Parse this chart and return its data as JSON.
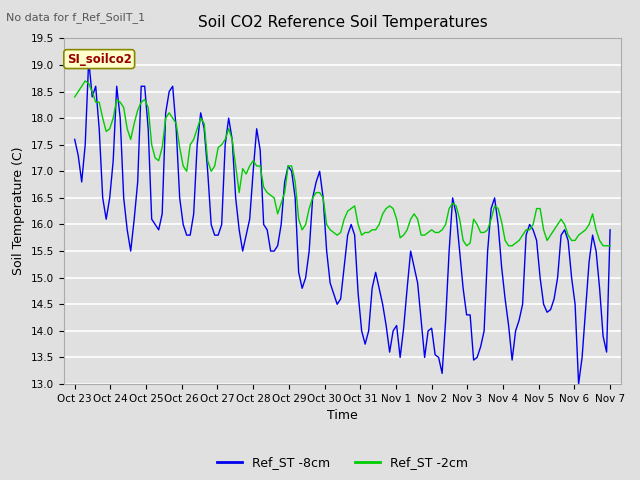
{
  "title": "Soil CO2 Reference Soil Temperatures",
  "top_left_text": "No data for f_Ref_SoilT_1",
  "annotation_text": "SI_soilco2",
  "xlabel": "Time",
  "ylabel": "Soil Temperature (C)",
  "ylim": [
    13.0,
    19.5
  ],
  "yticks": [
    13.0,
    13.5,
    14.0,
    14.5,
    15.0,
    15.5,
    16.0,
    16.5,
    17.0,
    17.5,
    18.0,
    18.5,
    19.0,
    19.5
  ],
  "xtick_labels": [
    "Oct 23",
    "Oct 24",
    "Oct 25",
    "Oct 26",
    "Oct 27",
    "Oct 28",
    "Oct 29",
    "Oct 30",
    "Oct 31",
    "Nov 1",
    "Nov 2",
    "Nov 3",
    "Nov 4",
    "Nov 5",
    "Nov 6",
    "Nov 7"
  ],
  "color_blue": "#0000ee",
  "color_green": "#00cc00",
  "legend_blue": "Ref_ST -8cm",
  "legend_green": "Ref_ST -2cm",
  "bg_color": "#e0e0e0",
  "plot_bg_color": "#e0e0e0",
  "grid_color": "#ffffff",
  "blue_data": [
    17.6,
    17.3,
    16.8,
    17.5,
    19.1,
    18.4,
    18.6,
    17.8,
    16.5,
    16.1,
    16.5,
    17.2,
    18.6,
    18.0,
    16.5,
    15.9,
    15.5,
    16.1,
    16.8,
    18.6,
    18.6,
    17.8,
    16.1,
    16.0,
    15.9,
    16.2,
    18.1,
    18.5,
    18.6,
    17.8,
    16.5,
    16.0,
    15.8,
    15.8,
    16.2,
    17.5,
    18.1,
    17.8,
    17.0,
    16.0,
    15.8,
    15.8,
    16.0,
    17.5,
    18.0,
    17.6,
    16.5,
    15.9,
    15.5,
    15.8,
    16.1,
    17.0,
    17.8,
    17.4,
    16.0,
    15.9,
    15.5,
    15.5,
    15.6,
    16.0,
    16.8,
    17.1,
    17.0,
    16.5,
    15.1,
    14.8,
    15.0,
    15.5,
    16.5,
    16.8,
    17.0,
    16.5,
    15.5,
    14.9,
    14.7,
    14.5,
    14.6,
    15.2,
    15.8,
    16.0,
    15.8,
    14.7,
    14.0,
    13.75,
    14.0,
    14.8,
    15.1,
    14.8,
    14.5,
    14.1,
    13.6,
    14.0,
    14.1,
    13.5,
    14.05,
    14.8,
    15.5,
    15.2,
    14.9,
    14.2,
    13.5,
    14.0,
    14.05,
    13.55,
    13.5,
    13.2,
    14.2,
    15.5,
    16.5,
    16.2,
    15.5,
    14.8,
    14.3,
    14.3,
    13.45,
    13.5,
    13.7,
    14.0,
    15.5,
    16.3,
    16.5,
    16.0,
    15.2,
    14.6,
    14.1,
    13.45,
    14.0,
    14.2,
    14.5,
    15.8,
    16.0,
    15.9,
    15.7,
    15.0,
    14.5,
    14.35,
    14.4,
    14.6,
    15.0,
    15.8,
    15.9,
    15.7,
    15.0,
    14.5,
    13.0,
    13.5,
    14.4,
    15.3,
    15.8,
    15.5,
    14.8,
    13.9,
    13.6,
    15.9
  ],
  "green_data": [
    18.4,
    18.5,
    18.6,
    18.7,
    18.65,
    18.5,
    18.3,
    18.3,
    18.0,
    17.75,
    17.8,
    18.0,
    18.35,
    18.3,
    18.2,
    17.8,
    17.6,
    17.9,
    18.15,
    18.3,
    18.35,
    18.2,
    17.5,
    17.25,
    17.2,
    17.45,
    18.0,
    18.1,
    18.0,
    17.9,
    17.45,
    17.1,
    17.0,
    17.5,
    17.6,
    17.8,
    18.0,
    17.9,
    17.2,
    17.0,
    17.1,
    17.45,
    17.5,
    17.6,
    17.8,
    17.6,
    17.1,
    16.6,
    17.05,
    16.95,
    17.1,
    17.2,
    17.1,
    17.1,
    16.7,
    16.6,
    16.55,
    16.5,
    16.2,
    16.4,
    16.6,
    17.1,
    17.1,
    16.8,
    16.1,
    15.9,
    16.0,
    16.3,
    16.5,
    16.6,
    16.6,
    16.5,
    16.0,
    15.9,
    15.85,
    15.8,
    15.85,
    16.1,
    16.25,
    16.3,
    16.35,
    16.0,
    15.8,
    15.85,
    15.85,
    15.9,
    15.9,
    16.0,
    16.2,
    16.3,
    16.35,
    16.3,
    16.1,
    15.75,
    15.8,
    15.9,
    16.1,
    16.2,
    16.1,
    15.8,
    15.8,
    15.85,
    15.9,
    15.85,
    15.85,
    15.9,
    16.0,
    16.3,
    16.4,
    16.35,
    16.1,
    15.7,
    15.6,
    15.65,
    16.1,
    16.0,
    15.85,
    15.85,
    15.9,
    16.1,
    16.35,
    16.3,
    16.05,
    15.7,
    15.6,
    15.6,
    15.65,
    15.7,
    15.8,
    15.9,
    15.9,
    16.0,
    16.3,
    16.3,
    15.9,
    15.7,
    15.8,
    15.9,
    16.0,
    16.1,
    16.0,
    15.8,
    15.7,
    15.7,
    15.8,
    15.85,
    15.9,
    16.0,
    16.2,
    15.9,
    15.7,
    15.6,
    15.6,
    15.6
  ]
}
